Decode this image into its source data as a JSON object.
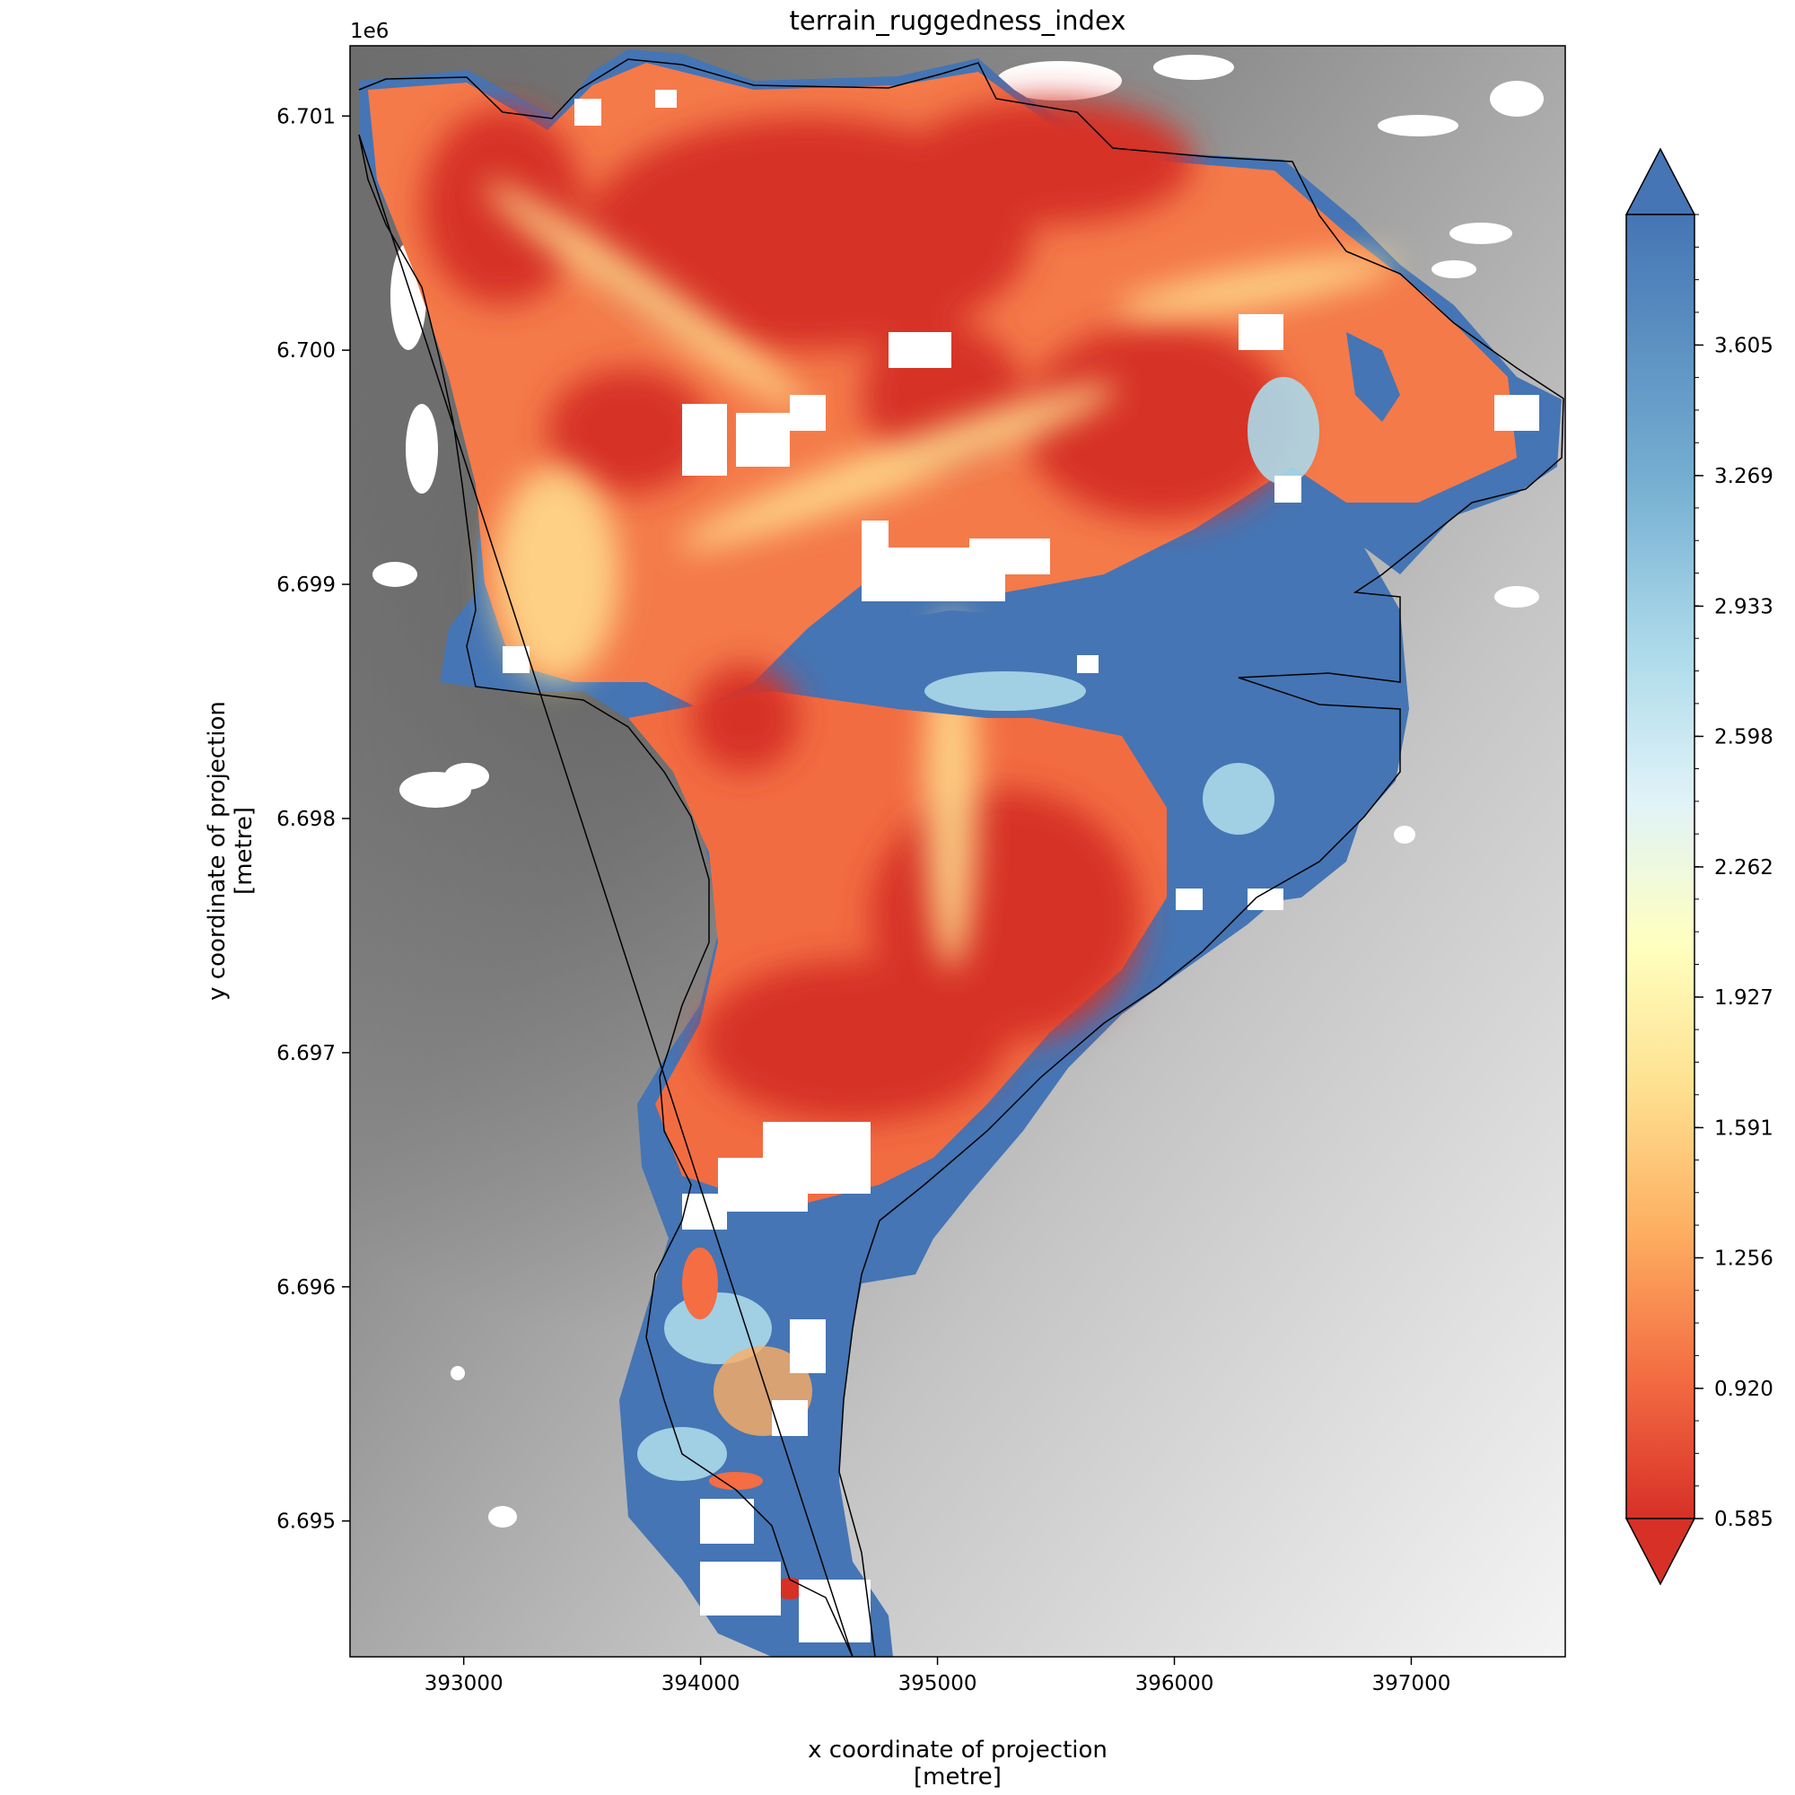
{
  "chart_data": {
    "type": "heatmap",
    "title": "terrain_ruggedness_index",
    "xlabel": "x coordinate of projection\n[metre]",
    "ylabel": "y coordinate of projection\n[metre]",
    "xlim": [
      392520,
      397650
    ],
    "ylim": [
      6694420,
      6701300
    ],
    "y_offset_text": "1e6",
    "x_ticks": [
      393000,
      394000,
      395000,
      396000,
      397000
    ],
    "x_tick_labels": [
      "393000",
      "394000",
      "395000",
      "396000",
      "397000"
    ],
    "y_ticks": [
      6695000,
      6696000,
      6697000,
      6698000,
      6699000,
      6700000,
      6701000
    ],
    "y_tick_labels": [
      "6.695",
      "6.696",
      "6.697",
      "6.698",
      "6.699",
      "6.700",
      "6.701"
    ],
    "colormap": "RdYlBu",
    "colorbar": {
      "extend": "both",
      "vmin": 0.585,
      "vmax": 3.941,
      "ticks": [
        0.585,
        0.92,
        1.256,
        1.591,
        1.927,
        2.262,
        2.598,
        2.933,
        3.269,
        3.605
      ],
      "tick_labels": [
        "0.585",
        "0.920",
        "1.256",
        "1.591",
        "1.927",
        "2.262",
        "2.598",
        "2.933",
        "3.269",
        "3.605"
      ],
      "under_color": "#d73027",
      "over_color": "#4575b4"
    },
    "background": "grayscale hillshade",
    "outline": "black polygon boundary"
  }
}
